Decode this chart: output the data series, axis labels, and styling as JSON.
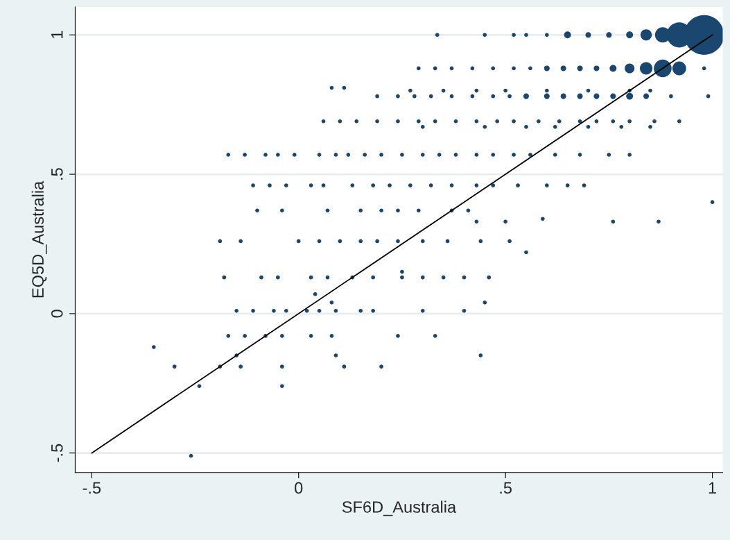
{
  "chart_data": {
    "type": "bubble",
    "xlabel": "SF6D_Australia",
    "ylabel": "EQ5D_Australia",
    "xlim": [
      -0.54,
      1.025
    ],
    "ylim": [
      -0.57,
      1.1
    ],
    "xticks": [
      {
        "value": -0.5,
        "label": "-.5"
      },
      0,
      {
        "value": 0.5,
        "label": ".5"
      },
      1
    ],
    "yticks": [
      {
        "value": -0.5,
        "label": "-.5"
      },
      0,
      {
        "value": 0.5,
        "label": ".5"
      },
      1
    ],
    "grid": "y",
    "series": [
      {
        "color": "#1a476f",
        "x": [
          0.335,
          0.45,
          0.52,
          0.55,
          0.6,
          0.65,
          0.7,
          0.75,
          0.8,
          0.84,
          0.88,
          0.92,
          0.98,
          0.29,
          0.33,
          0.37,
          0.42,
          0.47,
          0.52,
          0.56,
          0.6,
          0.64,
          0.68,
          0.72,
          0.76,
          0.8,
          0.84,
          0.88,
          0.92,
          0.98,
          0.08,
          0.11,
          0.27,
          0.35,
          0.43,
          0.5,
          0.6,
          0.7,
          0.8,
          0.85,
          0.19,
          0.24,
          0.28,
          0.32,
          0.37,
          0.42,
          0.47,
          0.51,
          0.55,
          0.6,
          0.64,
          0.68,
          0.72,
          0.76,
          0.8,
          0.84,
          0.9,
          0.99,
          0.06,
          0.1,
          0.14,
          0.19,
          0.24,
          0.29,
          0.33,
          0.38,
          0.43,
          0.48,
          0.52,
          0.58,
          0.63,
          0.68,
          0.72,
          0.76,
          0.8,
          0.86,
          0.92,
          0.3,
          0.45,
          0.55,
          0.62,
          0.7,
          0.78,
          0.85,
          -0.17,
          -0.13,
          -0.08,
          -0.05,
          -0.01,
          0.05,
          0.09,
          0.12,
          0.16,
          0.2,
          0.25,
          0.3,
          0.34,
          0.38,
          0.43,
          0.47,
          0.52,
          0.56,
          0.62,
          0.68,
          0.75,
          0.8,
          -0.11,
          -0.07,
          -0.03,
          0.03,
          0.06,
          0.13,
          0.18,
          0.22,
          0.27,
          0.32,
          0.37,
          0.43,
          0.47,
          0.53,
          0.6,
          0.65,
          0.69,
          -0.1,
          -0.04,
          0.07,
          0.15,
          0.2,
          0.24,
          0.29,
          0.37,
          0.41,
          0.43,
          0.5,
          0.76,
          0.87,
          1.0,
          0.55,
          0.59,
          -0.19,
          -0.14,
          0.0,
          0.05,
          0.1,
          0.15,
          0.19,
          0.24,
          0.3,
          0.36,
          0.44,
          0.51,
          -0.18,
          -0.09,
          -0.05,
          0.03,
          0.07,
          0.13,
          0.18,
          0.25,
          0.3,
          0.35,
          0.4,
          0.46,
          0.25,
          -0.15,
          -0.11,
          -0.06,
          -0.03,
          0.02,
          0.05,
          0.09,
          0.15,
          0.18,
          0.3,
          0.4,
          0.45,
          0.08,
          0.04,
          -0.17,
          -0.13,
          -0.08,
          -0.04,
          0.03,
          0.08,
          0.24,
          0.33,
          -0.15,
          0.09,
          0.44,
          -0.3,
          -0.19,
          -0.14,
          -0.04,
          0.11,
          0.2,
          -0.35,
          -0.24,
          -0.04,
          -0.26
        ],
        "values": [
          1,
          1,
          1,
          1,
          1,
          1,
          1,
          1,
          1,
          1,
          1,
          1,
          1,
          0.88,
          0.88,
          0.88,
          0.88,
          0.88,
          0.88,
          0.88,
          0.88,
          0.88,
          0.88,
          0.88,
          0.88,
          0.88,
          0.88,
          0.88,
          0.88,
          0.88,
          0.81,
          0.81,
          0.8,
          0.8,
          0.8,
          0.8,
          0.8,
          0.8,
          0.8,
          0.8,
          0.78,
          0.78,
          0.78,
          0.78,
          0.78,
          0.78,
          0.78,
          0.78,
          0.78,
          0.78,
          0.78,
          0.78,
          0.78,
          0.78,
          0.78,
          0.78,
          0.78,
          0.78,
          0.69,
          0.69,
          0.69,
          0.69,
          0.69,
          0.69,
          0.69,
          0.69,
          0.69,
          0.69,
          0.69,
          0.69,
          0.69,
          0.69,
          0.69,
          0.69,
          0.69,
          0.69,
          0.69,
          0.67,
          0.67,
          0.67,
          0.67,
          0.67,
          0.67,
          0.67,
          0.57,
          0.57,
          0.57,
          0.57,
          0.57,
          0.57,
          0.57,
          0.57,
          0.57,
          0.57,
          0.57,
          0.57,
          0.57,
          0.57,
          0.57,
          0.57,
          0.57,
          0.57,
          0.57,
          0.57,
          0.57,
          0.57,
          0.46,
          0.46,
          0.46,
          0.46,
          0.46,
          0.46,
          0.46,
          0.46,
          0.46,
          0.46,
          0.46,
          0.46,
          0.46,
          0.46,
          0.46,
          0.46,
          0.46,
          0.37,
          0.37,
          0.37,
          0.37,
          0.37,
          0.37,
          0.37,
          0.37,
          0.37,
          0.33,
          0.33,
          0.33,
          0.33,
          0.4,
          0.22,
          0.34,
          0.26,
          0.26,
          0.26,
          0.26,
          0.26,
          0.26,
          0.26,
          0.26,
          0.26,
          0.26,
          0.26,
          0.26,
          0.13,
          0.13,
          0.13,
          0.13,
          0.13,
          0.13,
          0.13,
          0.13,
          0.13,
          0.13,
          0.13,
          0.13,
          0.15,
          0.01,
          0.01,
          0.01,
          0.01,
          0.01,
          0.01,
          0.01,
          0.01,
          0.01,
          0.01,
          0.01,
          0.04,
          0.04,
          0.07,
          -0.08,
          -0.08,
          -0.08,
          -0.08,
          -0.08,
          -0.08,
          -0.08,
          -0.08,
          -0.15,
          -0.15,
          -0.15,
          -0.19,
          -0.19,
          -0.19,
          -0.19,
          -0.19,
          -0.19,
          -0.12,
          -0.26,
          -0.26,
          -0.51
        ],
        "sizes": [
          0.01,
          0.01,
          0.01,
          0.01,
          0.01,
          0.03,
          0.02,
          0.02,
          0.03,
          0.08,
          0.15,
          0.4,
          1,
          0.01,
          0.01,
          0.01,
          0.01,
          0.01,
          0.01,
          0.01,
          0.02,
          0.02,
          0.02,
          0.02,
          0.03,
          0.06,
          0.1,
          0.2,
          0.12,
          0.01,
          0.01,
          0.01,
          0.01,
          0.01,
          0.01,
          0.01,
          0.01,
          0.01,
          0.01,
          0.01,
          0.01,
          0.01,
          0.01,
          0.01,
          0.01,
          0.01,
          0.01,
          0.01,
          0.02,
          0.02,
          0.02,
          0.02,
          0.02,
          0.02,
          0.03,
          0.02,
          0.01,
          0.01,
          0.01,
          0.01,
          0.01,
          0.01,
          0.01,
          0.01,
          0.01,
          0.01,
          0.01,
          0.01,
          0.01,
          0.01,
          0.01,
          0.01,
          0.01,
          0.01,
          0.01,
          0.01,
          0.01,
          0.01,
          0.01,
          0.01,
          0.01,
          0.01,
          0.01,
          0.01,
          0.01,
          0.01,
          0.01,
          0.01,
          0.01,
          0.01,
          0.01,
          0.01,
          0.01,
          0.01,
          0.01,
          0.01,
          0.01,
          0.01,
          0.01,
          0.01,
          0.01,
          0.01,
          0.01,
          0.01,
          0.01,
          0.01,
          0.01,
          0.01,
          0.01,
          0.01,
          0.01,
          0.01,
          0.01,
          0.01,
          0.01,
          0.01,
          0.01,
          0.01,
          0.01,
          0.01,
          0.01,
          0.01,
          0.01,
          0.01,
          0.01,
          0.01,
          0.01,
          0.01,
          0.01,
          0.01,
          0.01,
          0.01,
          0.01,
          0.01,
          0.01,
          0.01,
          0.01,
          0.01,
          0.01,
          0.01,
          0.01,
          0.01,
          0.01,
          0.01,
          0.01,
          0.01,
          0.01,
          0.01,
          0.01,
          0.01,
          0.01,
          0.01,
          0.01,
          0.01,
          0.01,
          0.01,
          0.01,
          0.01,
          0.01,
          0.01,
          0.01,
          0.01,
          0.01,
          0.01,
          0.01,
          0.01,
          0.01,
          0.01,
          0.01,
          0.01,
          0.01,
          0.01,
          0.01,
          0.01,
          0.01,
          0.01,
          0.01,
          0.01,
          0.01,
          0.01,
          0.01,
          0.01,
          0.01,
          0.01,
          0.01,
          0.01,
          0.01,
          0.01,
          0.01,
          0.01,
          0.01,
          0.01,
          0.01,
          0.01,
          0.01,
          0.01,
          0.01,
          0.01,
          0.01
        ]
      },
      {
        "type": "line",
        "color": "#000000",
        "x": [
          -0.5,
          1
        ],
        "values": [
          -0.5,
          1
        ]
      }
    ]
  }
}
